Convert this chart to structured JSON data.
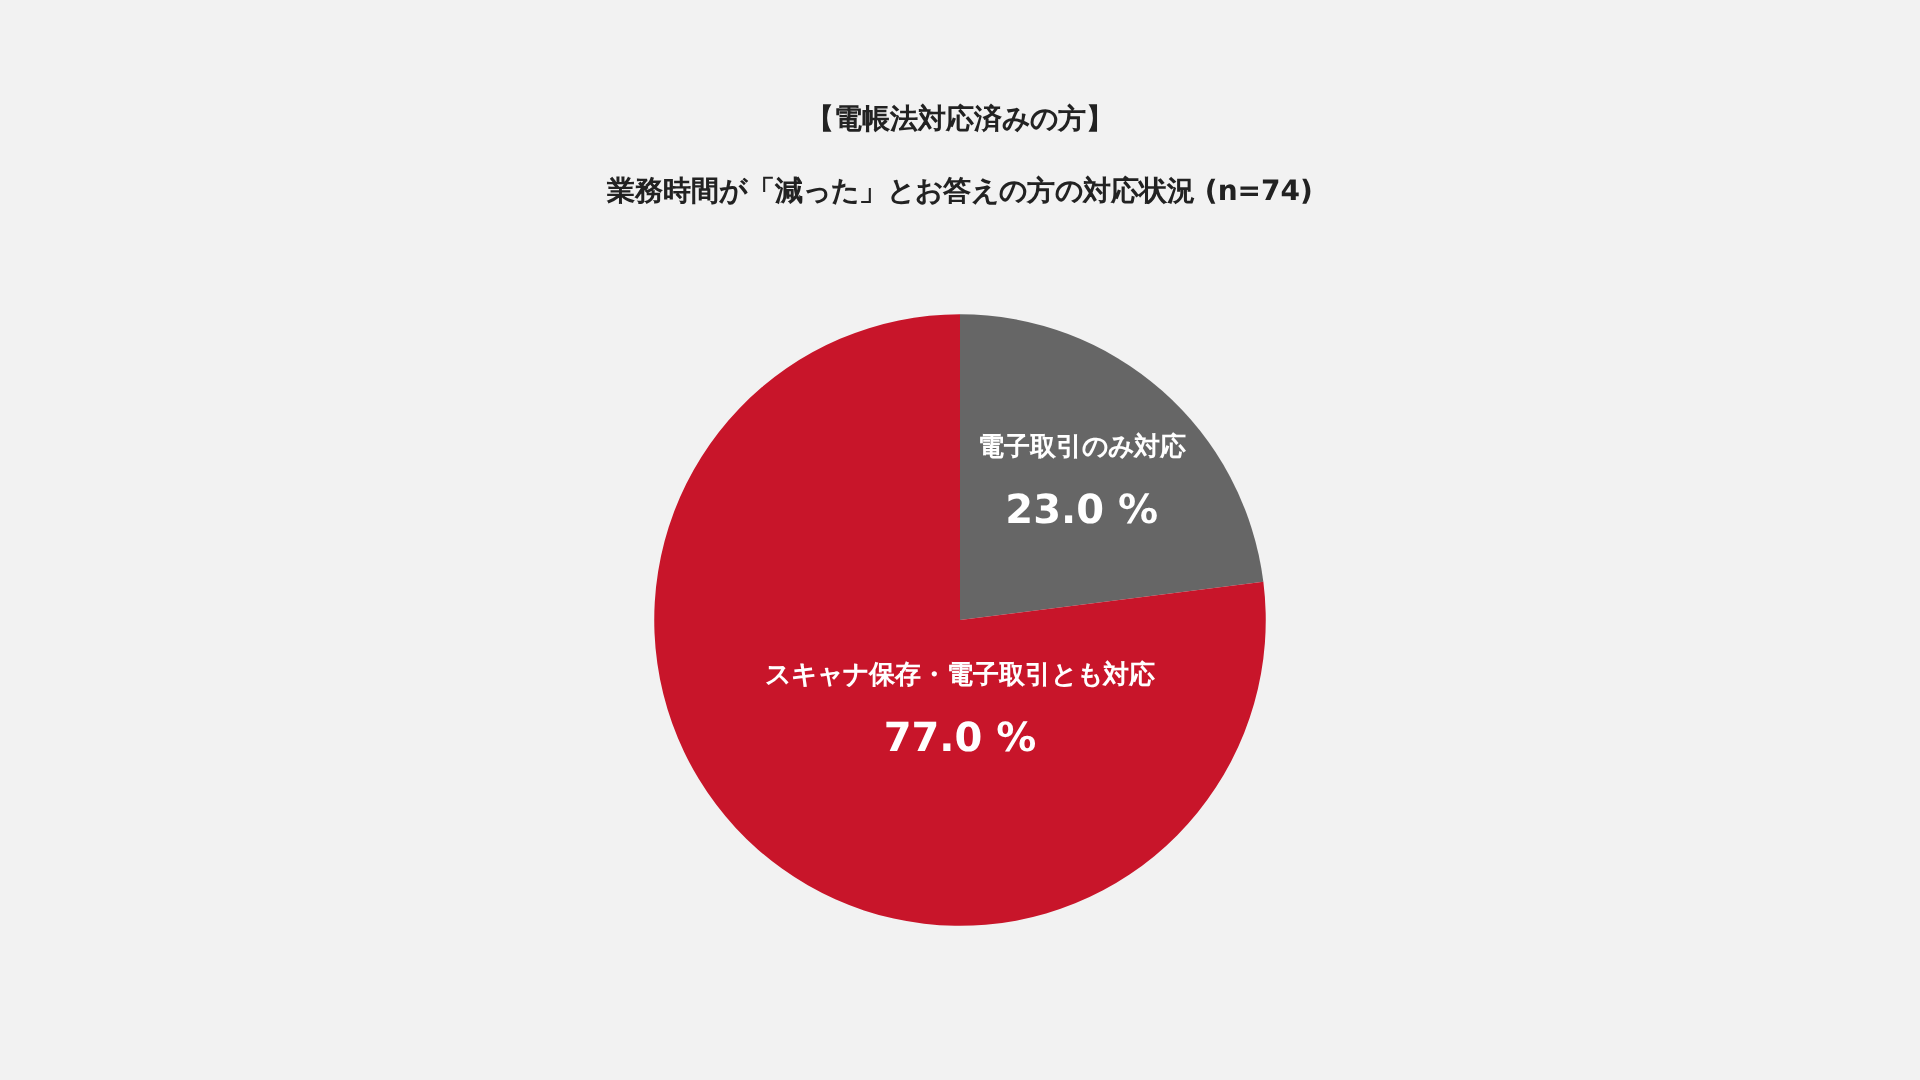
{
  "chart_data": {
    "type": "pie",
    "title": "【電帳法対応済みの方】",
    "subtitle": "業務時間が「減った」とお答えの方の対応状況 (n=74)",
    "categories": [
      "電子取引のみ対応",
      "スキャナ保存・電子取引とも対応"
    ],
    "values": [
      23.0,
      77.0
    ],
    "colors": [
      "#666666",
      "#c8152a"
    ],
    "value_labels": [
      "23.0 %",
      "77.0 %"
    ],
    "legend": false
  }
}
